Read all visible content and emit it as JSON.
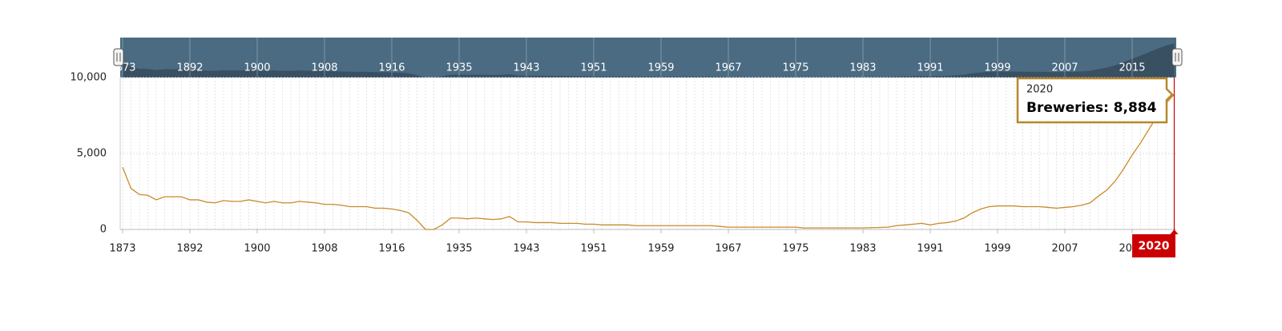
{
  "chart_data": {
    "type": "line",
    "categories": [
      "1873",
      null,
      null,
      null,
      null,
      null,
      null,
      null,
      "1892",
      null,
      null,
      null,
      null,
      null,
      null,
      null,
      "1900",
      null,
      null,
      null,
      null,
      null,
      null,
      null,
      "1908",
      null,
      null,
      null,
      null,
      null,
      null,
      null,
      "1916",
      null,
      null,
      null,
      null,
      null,
      null,
      null,
      "1935",
      null,
      null,
      null,
      null,
      null,
      null,
      null,
      "1943",
      null,
      null,
      null,
      null,
      null,
      null,
      null,
      "1951",
      null,
      null,
      null,
      null,
      null,
      null,
      null,
      "1959",
      null,
      null,
      null,
      null,
      null,
      null,
      null,
      "1967",
      null,
      null,
      null,
      null,
      null,
      null,
      null,
      "1975",
      null,
      null,
      null,
      null,
      null,
      null,
      null,
      "1983",
      null,
      null,
      null,
      null,
      null,
      null,
      null,
      "1991",
      null,
      null,
      null,
      null,
      null,
      null,
      null,
      "1999",
      null,
      null,
      null,
      null,
      null,
      null,
      null,
      "2007",
      null,
      null,
      null,
      null,
      null,
      null,
      null,
      "2015",
      null,
      null,
      null,
      null,
      "2020"
    ],
    "series": [
      {
        "name": "Breweries",
        "color": "#c98a2b",
        "values": [
          4100,
          2700,
          2300,
          2250,
          1950,
          2150,
          2150,
          2150,
          1950,
          1950,
          1800,
          1750,
          1900,
          1850,
          1850,
          1950,
          1850,
          1750,
          1850,
          1750,
          1750,
          1850,
          1800,
          1750,
          1650,
          1650,
          1600,
          1500,
          1500,
          1500,
          1400,
          1400,
          1350,
          1250,
          1100,
          600,
          0,
          0,
          300,
          750,
          750,
          700,
          750,
          700,
          650,
          700,
          850,
          500,
          500,
          450,
          450,
          450,
          400,
          400,
          400,
          350,
          350,
          300,
          300,
          300,
          300,
          250,
          250,
          250,
          250,
          250,
          250,
          250,
          250,
          250,
          250,
          200,
          150,
          150,
          150,
          150,
          150,
          150,
          150,
          150,
          150,
          100,
          100,
          100,
          100,
          100,
          100,
          100,
          100,
          120,
          130,
          150,
          250,
          300,
          350,
          400,
          300,
          400,
          450,
          550,
          750,
          1100,
          1350,
          1500,
          1550,
          1550,
          1550,
          1500,
          1500,
          1500,
          1450,
          1400,
          1450,
          1500,
          1600,
          1750,
          2200,
          2600,
          3200,
          4000,
          4900,
          5700,
          6600,
          7500,
          8300,
          8884
        ]
      }
    ],
    "ylim": [
      0,
      10000
    ],
    "yticks": [
      0,
      {
        "value": 5000,
        "label": "5,000"
      },
      {
        "value": 10000,
        "label": "10,000"
      }
    ],
    "grid": true,
    "tooltip": {
      "title": "2020",
      "text": "Breweries: 8,884"
    }
  }
}
